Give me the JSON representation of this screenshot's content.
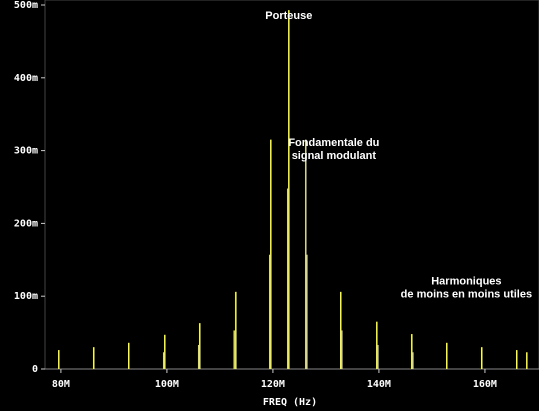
{
  "chart_data": {
    "type": "stem",
    "xlabel": "FREQ (Hz)",
    "xlim": [
      77,
      170.2
    ],
    "ylim": [
      0,
      500
    ],
    "xticks": [
      {
        "value": 80,
        "label": "80M"
      },
      {
        "value": 100,
        "label": "100M"
      },
      {
        "value": 120,
        "label": "120M"
      },
      {
        "value": 140,
        "label": "140M"
      },
      {
        "value": 160,
        "label": "160M"
      }
    ],
    "yticks": [
      0,
      {
        "value": 100,
        "label": "100m"
      },
      {
        "value": 200,
        "label": "200m"
      },
      {
        "value": 300,
        "label": "300m"
      },
      {
        "value": 400,
        "label": "400m"
      },
      {
        "value": 500,
        "label": "500m"
      }
    ],
    "annotations": [
      {
        "lines": [
          "Porteuse"
        ],
        "x": 123.0,
        "y": 485
      },
      {
        "lines": [
          "Fondamentale du",
          "signal modulant"
        ],
        "x": 131.5,
        "y": 310
      },
      {
        "lines": [
          "Harmoniques",
          "de moins en moins utiles"
        ],
        "x": 156.5,
        "y": 120
      }
    ],
    "series": [
      {
        "color": "#ffff33",
        "x": [
          123.0,
          119.6,
          113.0,
          132.8,
          106.2,
          139.6,
          99.6,
          146.2,
          92.8,
          152.8,
          86.2,
          159.4,
          79.6,
          166.0,
          167.9
        ],
        "values": [
          493,
          315,
          106,
          106,
          63,
          65,
          47,
          48,
          36,
          36,
          30,
          30,
          26,
          26,
          23
        ]
      },
      {
        "color": "#d8d890",
        "x": [
          126.2,
          122.8,
          119.4,
          126.4,
          112.7,
          133.0,
          106.0,
          139.8,
          99.4,
          146.4
        ],
        "values": [
          315,
          248,
          157,
          157,
          53,
          53,
          33,
          33,
          23,
          23
        ]
      }
    ]
  }
}
